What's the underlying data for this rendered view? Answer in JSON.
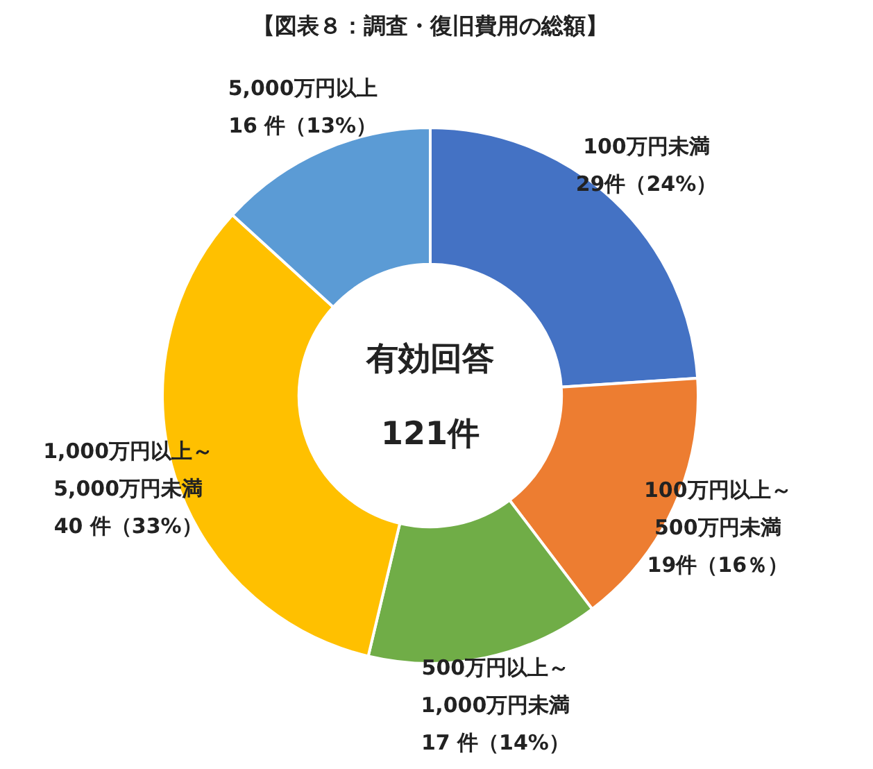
{
  "chart_data": {
    "type": "donut",
    "title": "【図表８：調査・復旧費用の総額】",
    "categories": [
      "100万円未満",
      "100万円以上～500万円未満",
      "500万円以上～1,000万円未満",
      "1,000万円以上～5,000万円未満",
      "5,000万円以上"
    ],
    "values": [
      29,
      19,
      17,
      40,
      16
    ],
    "colors": [
      "#4472c4",
      "#ed7d31",
      "#70ad47",
      "#ffc000",
      "#5b9bd5"
    ],
    "value_labels": [
      "29件（24%）",
      "19件（16％）",
      "17 件（14%）",
      "40 件（33%）",
      "16 件（13%）"
    ],
    "annotations": [
      "有効回答",
      "121件"
    ]
  }
}
